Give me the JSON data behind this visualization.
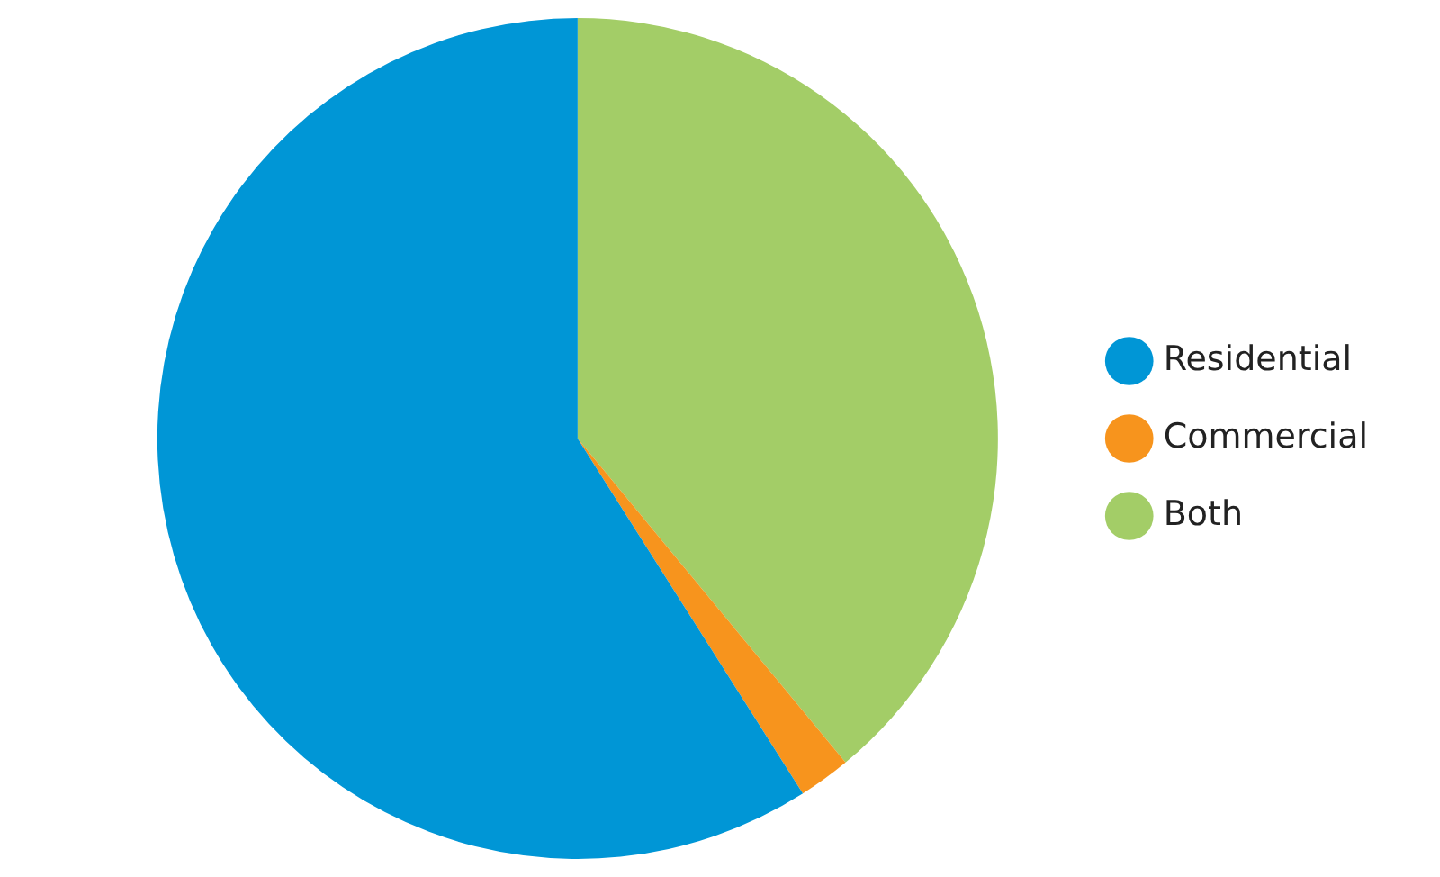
{
  "chart_data": {
    "type": "pie",
    "categories": [
      "Residential",
      "Commercial",
      "Both"
    ],
    "values": [
      59,
      2,
      39
    ],
    "colors": [
      "#0096d6",
      "#f7941d",
      "#a3cd67"
    ],
    "legend": "right"
  }
}
